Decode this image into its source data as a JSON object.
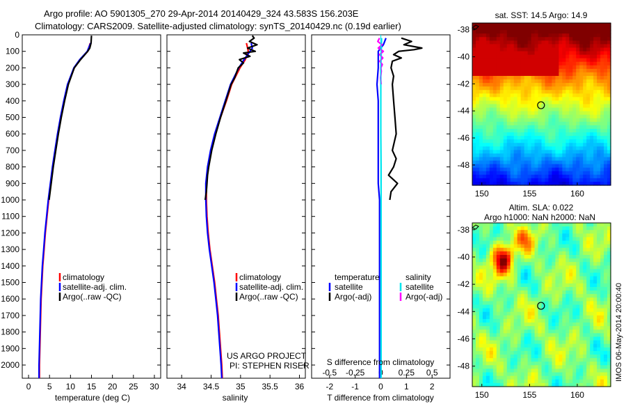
{
  "header": {
    "line1": "Argo profile: AO 5901305_270 29-Apr-2014 20140429_324 43.583S 156.203E",
    "line2": "Climatology: CARS2009. Satellite-adjusted climatology: synTS_20140429.nc (0.19d earlier)"
  },
  "colors": {
    "climatology": "#ff0000",
    "satellite": "#0000ff",
    "argo": "#000000",
    "sal_satellite": "#00e5ee",
    "sal_argo": "#ff00ff"
  },
  "chart_data": [
    {
      "type": "line",
      "title": "Temperature profile",
      "xlabel": "temperature (deg C)",
      "ylabel": "",
      "xlim": [
        -1.5,
        31.5
      ],
      "ylim": [
        2080,
        0
      ],
      "xticks": [
        "0",
        "5",
        "10",
        "15",
        "20",
        "25",
        "30"
      ],
      "yticks": [
        "0",
        "100",
        "200",
        "300",
        "400",
        "500",
        "600",
        "700",
        "800",
        "900",
        "1000",
        "1100",
        "1200",
        "1300",
        "1400",
        "1500",
        "1600",
        "1700",
        "1800",
        "1900",
        "2000"
      ],
      "legend": [
        "climatology",
        "satellite-adj. clim.",
        "Argo(..raw -QC)"
      ],
      "series": [
        {
          "name": "climatology",
          "color": "#ff0000",
          "depth": [
            50,
            100,
            150,
            200,
            300,
            400,
            500,
            600,
            700,
            800,
            900,
            1000,
            1100,
            1200,
            1300,
            1400,
            1500,
            1600,
            1700,
            1800,
            1900,
            2000,
            2080
          ],
          "values": [
            14.7,
            14.1,
            12.3,
            10.9,
            9.4,
            8.5,
            7.7,
            7.0,
            6.4,
            5.8,
            5.3,
            4.8,
            4.4,
            4.0,
            3.7,
            3.4,
            3.2,
            3.0,
            2.9,
            2.8,
            2.7,
            2.6,
            2.6
          ]
        },
        {
          "name": "satellite-adj. clim.",
          "color": "#0000ff",
          "depth": [
            50,
            100,
            150,
            200,
            300,
            400,
            500,
            600,
            700,
            800,
            900,
            1000,
            1100,
            1200,
            1300,
            1400,
            1500,
            1600,
            1700,
            1800,
            1900,
            2000,
            2080
          ],
          "values": [
            14.8,
            14.0,
            12.2,
            10.8,
            9.3,
            8.4,
            7.6,
            6.9,
            6.3,
            5.7,
            5.2,
            4.7,
            4.3,
            3.9,
            3.6,
            3.3,
            3.1,
            2.9,
            2.8,
            2.7,
            2.6,
            2.5,
            2.5
          ]
        },
        {
          "name": "Argo(..raw -QC)",
          "color": "#000000",
          "depth": [
            5,
            50,
            80,
            100,
            150,
            200,
            300,
            400,
            500,
            600,
            700,
            800,
            900,
            1000
          ],
          "values": [
            15.0,
            14.9,
            14.6,
            14.1,
            12.4,
            10.9,
            9.5,
            8.6,
            7.8,
            7.1,
            6.5,
            5.9,
            5.4,
            4.9
          ]
        }
      ]
    },
    {
      "type": "line",
      "title": "Salinity profile",
      "xlabel": "salinity",
      "ylabel": "",
      "xlim": [
        33.75,
        36.1
      ],
      "ylim": [
        2080,
        0
      ],
      "xticks": [
        "34",
        "34.5",
        "35",
        "35.5",
        "36"
      ],
      "legend": [
        "climatology",
        "satellite-adj. clim.",
        "Argo(..raw -QC)"
      ],
      "series": [
        {
          "name": "climatology",
          "color": "#ff0000",
          "depth": [
            50,
            80,
            100,
            150,
            200,
            300,
            400,
            500,
            600,
            700,
            800,
            900,
            1000,
            1100,
            1200,
            1300,
            1400,
            1500,
            1600,
            1700,
            1800,
            1900,
            2000,
            2080
          ],
          "values": [
            35.1,
            35.12,
            35.13,
            35.08,
            34.99,
            34.85,
            34.76,
            34.66,
            34.57,
            34.5,
            34.45,
            34.42,
            34.42,
            34.43,
            34.45,
            34.48,
            34.52,
            34.56,
            34.59,
            34.62,
            34.64,
            34.66,
            34.68,
            34.69
          ]
        },
        {
          "name": "satellite-adj. clim.",
          "color": "#0000ff",
          "depth": [
            50,
            80,
            100,
            150,
            200,
            300,
            400,
            500,
            600,
            700,
            800,
            900,
            1000,
            1100,
            1200,
            1300,
            1400,
            1500,
            1600,
            1700,
            1800,
            1900,
            2000,
            2080
          ],
          "values": [
            35.18,
            35.2,
            35.16,
            35.06,
            34.97,
            34.83,
            34.74,
            34.65,
            34.56,
            34.49,
            34.44,
            34.41,
            34.41,
            34.42,
            34.44,
            34.47,
            34.51,
            34.55,
            34.58,
            34.61,
            34.63,
            34.65,
            34.67,
            34.68
          ]
        },
        {
          "name": "Argo(..raw -QC)",
          "color": "#000000",
          "depth": [
            5,
            20,
            40,
            60,
            80,
            100,
            110,
            130,
            150,
            170,
            200,
            260,
            300,
            400,
            500,
            600,
            700,
            800,
            850,
            900,
            950,
            1000
          ],
          "values": [
            35.2,
            35.23,
            35.15,
            35.28,
            35.12,
            35.25,
            35.05,
            35.16,
            34.98,
            35.05,
            34.96,
            34.9,
            34.84,
            34.75,
            34.66,
            34.58,
            34.51,
            34.46,
            34.44,
            34.43,
            34.42,
            34.4
          ]
        }
      ]
    },
    {
      "type": "line",
      "title": "Difference from climatology",
      "xlabel": "T difference from climatology",
      "xlabel_top": "S difference from climatology",
      "xlim": [
        -2.7,
        2.7
      ],
      "ylim": [
        2080,
        0
      ],
      "xticks": [
        "-2",
        "-1",
        "0",
        "1",
        "2"
      ],
      "sticks": [
        "-0.5",
        "-0.25",
        "0",
        "0.25",
        "0.5"
      ],
      "legend_headers": [
        "temperature",
        "salinity"
      ],
      "legend": [
        "satellite",
        "Argo(-adj)",
        "satellite",
        "Argo(-adj)"
      ],
      "series": [
        {
          "name": "temperature satellite",
          "color": "#0000ff",
          "depth": [
            20,
            60,
            100,
            200,
            300,
            400,
            500,
            600,
            700,
            800,
            900,
            1000,
            1200,
            1400,
            1600,
            1800,
            2000,
            2080
          ],
          "values": [
            0.2,
            0.1,
            -0.1,
            -0.1,
            -0.15,
            -0.1,
            -0.1,
            -0.1,
            -0.1,
            -0.1,
            -0.1,
            -0.05,
            -0.05,
            -0.05,
            -0.05,
            -0.05,
            -0.05,
            -0.05
          ]
        },
        {
          "name": "temperature Argo(-adj)",
          "color": "#000000",
          "depth": [
            20,
            40,
            60,
            80,
            90,
            100,
            120,
            140,
            160,
            200,
            250,
            300,
            400,
            500,
            600,
            700,
            750,
            800,
            850,
            900,
            950,
            1000
          ],
          "values": [
            0.8,
            1.2,
            0.9,
            1.6,
            1.3,
            0.7,
            0.5,
            0.8,
            0.45,
            0.4,
            0.5,
            0.45,
            0.5,
            0.55,
            0.6,
            0.45,
            0.6,
            0.5,
            0.3,
            0.65,
            0.4,
            0.35
          ]
        },
        {
          "name": "salinity satellite",
          "color": "#00e5ee",
          "depth": [
            20,
            100,
            200,
            300,
            400,
            600,
            800,
            1000,
            1200,
            1400,
            1600,
            1800,
            2000,
            2080
          ],
          "values": [
            0.03,
            0.02,
            0.0,
            0.0,
            0.0,
            0.0,
            0.01,
            0.01,
            0.01,
            0.01,
            0.01,
            0.01,
            0.01,
            0.01
          ]
        },
        {
          "name": "salinity Argo(-adj)",
          "color": "#ff00ff",
          "depth": [
            20,
            40,
            60,
            80,
            100,
            120,
            140,
            160,
            180,
            200,
            220,
            260,
            300
          ],
          "values": [
            -0.05,
            -0.12,
            0.05,
            -0.1,
            0.1,
            -0.05,
            0.08,
            -0.04,
            0.06,
            0.0,
            0.02,
            -0.01,
            0.01
          ]
        }
      ]
    },
    {
      "type": "heatmap",
      "title": "sat. SST: 14.5 Argo: 14.9",
      "xlim": [
        149,
        163.5
      ],
      "ylim": [
        -49.5,
        -37.5
      ],
      "xticks": [
        "150",
        "155",
        "160"
      ],
      "yticks": [
        "-38",
        "-40",
        "-42",
        "-44",
        "-46",
        "-48"
      ],
      "marker": {
        "lon": 156.2,
        "lat": -43.58
      }
    },
    {
      "type": "heatmap",
      "title": "Altim. SLA: 0.022",
      "subtitle": "Argo h1000: NaN h2000: NaN",
      "xlim": [
        149,
        163.5
      ],
      "ylim": [
        -49.5,
        -37.5
      ],
      "xticks": [
        "150",
        "155",
        "160"
      ],
      "yticks": [
        "-38",
        "-40",
        "-42",
        "-44",
        "-46",
        "-48"
      ],
      "marker": {
        "lon": 156.2,
        "lat": -43.58
      }
    }
  ],
  "annotations": {
    "project": "US ARGO PROJECT",
    "pi": "PI: STEPHEN RISER",
    "footer": "IMOS 06-May-2014 20:00:40"
  }
}
